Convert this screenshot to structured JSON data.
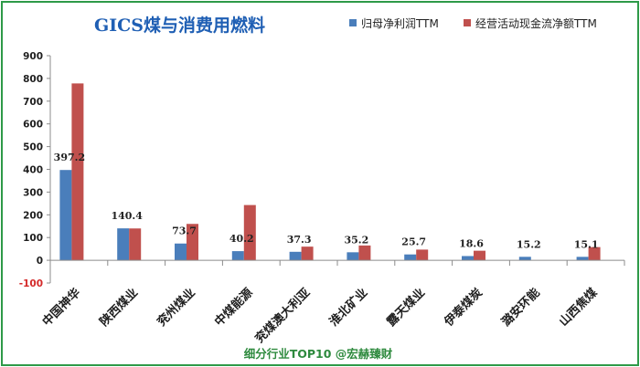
{
  "chart_data": {
    "type": "bar",
    "title": "GICS煤与消费用燃料",
    "categories": [
      "中国神华",
      "陕西煤业",
      "兖州煤业",
      "中煤能源",
      "兖煤澳大利亚",
      "淮北矿业",
      "露天煤业",
      "伊泰煤炭",
      "潞安环能",
      "山西焦煤"
    ],
    "series": [
      {
        "name": "归母净利润TTM",
        "color": "#4a7ebb",
        "values": [
          397.2,
          140.4,
          73.7,
          40.2,
          37.3,
          35.2,
          25.7,
          18.6,
          15.2,
          15.1
        ]
      },
      {
        "name": "经营活动现金流净额TTM",
        "color": "#c0504d",
        "values": [
          778,
          140,
          160,
          243,
          60,
          65,
          47,
          42,
          0,
          58
        ]
      }
    ],
    "data_labels": [
      "397.2",
      "140.4",
      "73.7",
      "40.2",
      "37.3",
      "35.2",
      "25.7",
      "18.6",
      "15.2",
      "15.1"
    ],
    "yticks": [
      -100,
      0,
      100,
      200,
      300,
      400,
      500,
      600,
      700,
      800,
      900
    ],
    "ytick_labels": [
      "-100",
      "0",
      "100",
      "200",
      "300",
      "400",
      "500",
      "600",
      "700",
      "800",
      "900"
    ],
    "ylim": [
      -100,
      900
    ],
    "grid": false,
    "legend_position": "top-right",
    "footer": "细分行业TOP10 @宏赫臻财"
  }
}
